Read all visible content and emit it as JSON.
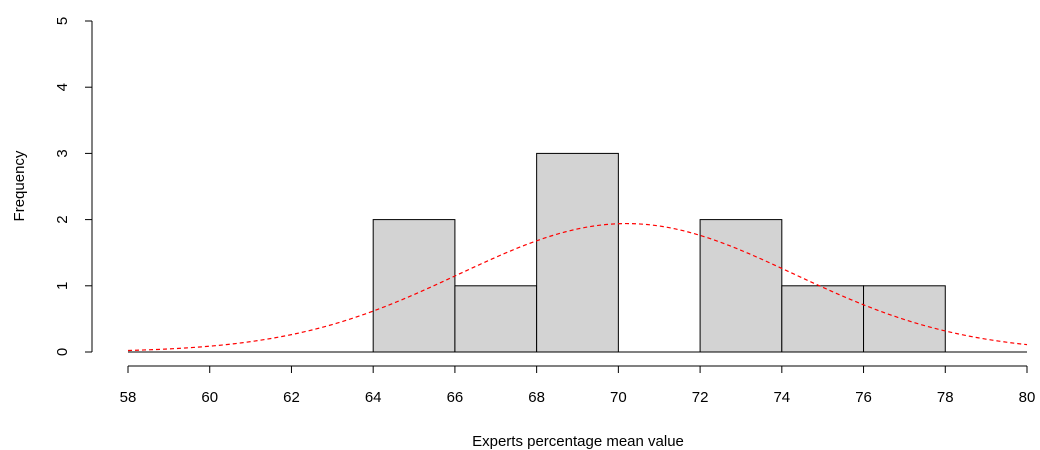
{
  "chart_data": {
    "type": "bar",
    "subtype": "histogram",
    "xlabel": "Experts percentage mean value",
    "ylabel": "Frequency",
    "xlim": [
      58,
      80
    ],
    "ylim": [
      0,
      5
    ],
    "x_ticks": [
      58,
      60,
      62,
      64,
      66,
      68,
      70,
      72,
      74,
      76,
      78,
      80
    ],
    "y_ticks": [
      0,
      1,
      2,
      3,
      4,
      5
    ],
    "bins": [
      {
        "from": 64,
        "to": 66,
        "count": 2
      },
      {
        "from": 66,
        "to": 68,
        "count": 1
      },
      {
        "from": 68,
        "to": 70,
        "count": 3
      },
      {
        "from": 70,
        "to": 72,
        "count": 0
      },
      {
        "from": 72,
        "to": 74,
        "count": 2
      },
      {
        "from": 74,
        "to": 76,
        "count": 1
      },
      {
        "from": 76,
        "to": 78,
        "count": 1
      }
    ],
    "bar_color": "#d3d3d3",
    "bar_border_color": "#000000",
    "curve": {
      "type": "normal-density-scaled",
      "style": "dashed",
      "color": "#ff0000",
      "mean": 70.2,
      "sd": 4.1,
      "peak": 1.94
    },
    "grid": false,
    "legend": "none"
  }
}
